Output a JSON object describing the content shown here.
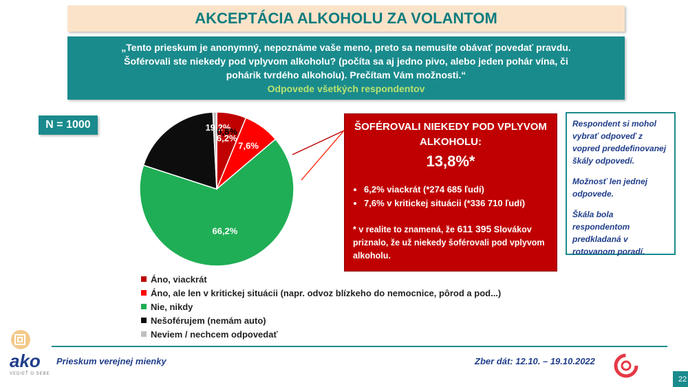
{
  "title": "AKCEPTÁCIA ALKOHOLU ZA VOLANTOM",
  "question": "„Tento prieskum je anonymný, nepoznáme vaše meno, preto sa nemusíte obávať povedať pravdu. Šoférovali ste niekedy pod vplyvom alkoholu? (počíta sa aj jedno pivo, alebo jeden pohár vína, či pohárik tvrdého alkoholu). Prečítam Vám možnosti.“",
  "question_sub": "Odpovede všetkých respondentov",
  "n_label": "N = 1000",
  "chart_data": {
    "type": "pie",
    "slices": [
      {
        "label": "Áno, viackrát",
        "value": 6.2,
        "display": "6,2%",
        "color": "#c00000"
      },
      {
        "label": "Áno, ale len v kritickej situácii (napr. odvoz blízkeho do nemocnice, pôrod a pod...)",
        "value": 7.6,
        "display": "7,6%",
        "color": "#ff0000"
      },
      {
        "label": "Nie, nikdy",
        "value": 66.2,
        "display": "66,2%",
        "color": "#1fae55"
      },
      {
        "label": "Nešoférujem (nemám auto)",
        "value": 19.2,
        "display": "19,2%",
        "color": "#0d0d0d"
      },
      {
        "label": "Neviem / nechcem odpovedať",
        "value": 0.8,
        "display": "0,8%",
        "color": "#bfbfbf"
      }
    ],
    "start": "top",
    "direction": "clockwise",
    "legend_position": "bottom-left"
  },
  "highlight": {
    "heading": "ŠOFÉROVALI NIEKEDY POD VPLYVOM ALKOHOLU:",
    "total": "13,8%*",
    "bullets": [
      "6,2% viackrát (*274 685 ľudí)",
      "7,6% v kritickej situácii (*336 710 ľudí)"
    ],
    "foot_prefix": "* v realite to znamená, že",
    "foot_number": "611 395",
    "foot_suffix": "Slovákov priznalo, že už niekedy šoférovali pod vplyvom alkoholu."
  },
  "note": [
    "Respondent si mohol vybrať odpoveď z vopred preddefinovanej škály odpovedí.",
    "Možnosť len jednej odpovede.",
    "Škála bola respondentom predkladaná v rotovanom poradí."
  ],
  "footer": {
    "left": "Prieskum verejnej mienky",
    "right": "Zber dát: 12.10. – 19.10.2022",
    "page": "22"
  },
  "logo": {
    "name": "ako",
    "tagline": "VEDIEŤ O SEBE"
  },
  "colors": {
    "teal": "#1a8b8d",
    "title_bg": "#fbe3c9",
    "highlight_red": "#c00000",
    "navy": "#1f3d8a"
  }
}
